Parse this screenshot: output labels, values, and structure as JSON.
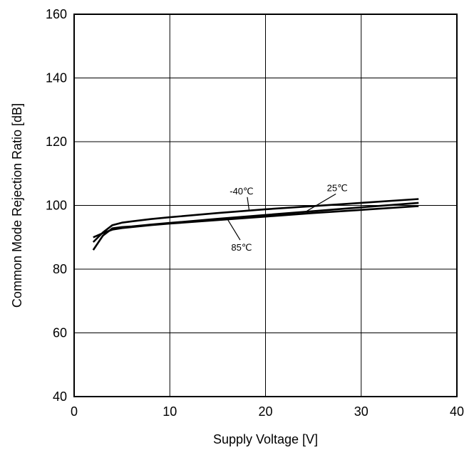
{
  "chart_data": {
    "type": "line",
    "title": "",
    "xlabel": "Supply Voltage [V]",
    "ylabel": "Common Mode Rejection Ratio [dB]",
    "xlim": [
      0,
      40
    ],
    "ylim": [
      40,
      160
    ],
    "xticks": [
      0,
      10,
      20,
      30,
      40
    ],
    "yticks": [
      40,
      60,
      80,
      100,
      120,
      140,
      160
    ],
    "grid": true,
    "line_color": "#000000",
    "series": [
      {
        "label": "-40℃",
        "x": [
          2,
          3,
          4,
          5,
          6,
          8,
          10,
          15,
          20,
          25,
          30,
          36
        ],
        "y": [
          88.5,
          91.5,
          93.8,
          94.6,
          95.0,
          95.7,
          96.3,
          97.6,
          98.8,
          99.8,
          100.8,
          102.0
        ]
      },
      {
        "label": "25℃",
        "x": [
          2,
          3,
          4,
          5,
          6,
          8,
          10,
          15,
          20,
          25,
          30,
          36
        ],
        "y": [
          86.0,
          90.5,
          92.8,
          93.2,
          93.4,
          94.0,
          94.5,
          95.8,
          97.0,
          98.2,
          99.4,
          100.8
        ]
      },
      {
        "label": "85℃",
        "x": [
          2,
          3,
          4,
          5,
          6,
          8,
          10,
          15,
          20,
          25,
          30,
          36
        ],
        "y": [
          90.0,
          91.3,
          92.4,
          92.9,
          93.2,
          93.8,
          94.3,
          95.4,
          96.5,
          97.6,
          98.6,
          99.8
        ]
      }
    ],
    "annotations": [
      {
        "text": "-40℃",
        "x": 17.5,
        "y": 103.5,
        "point_x": 18.3,
        "point_y": 98.2
      },
      {
        "text": "25℃",
        "x": 27.5,
        "y": 104.5,
        "point_x": 24.3,
        "point_y": 98.2
      },
      {
        "text": "85℃",
        "x": 17.5,
        "y": 85.8,
        "point_x": 16.0,
        "point_y": 95.8
      }
    ]
  }
}
